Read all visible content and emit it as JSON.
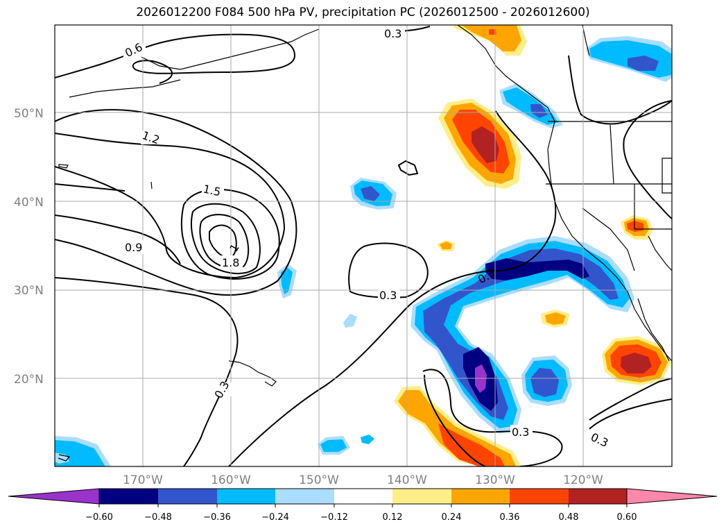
{
  "title": "2026012200 F084 500 hPa PV, precipitation PC (2026012500 - 2026012600)",
  "map": {
    "lat_labels": [
      "50°N",
      "40°N",
      "30°N",
      "20°N"
    ],
    "lon_labels": [
      "170°W",
      "160°W",
      "150°W",
      "140°W",
      "130°W",
      "120°W"
    ],
    "contour_labels": [
      "0.6",
      "1.2",
      "1.5",
      "0.9",
      "1",
      "1.8",
      "0.3",
      "0.3",
      "0.3",
      "0.3",
      "0.3",
      "0.3"
    ]
  },
  "colorbar": {
    "ticks": [
      "−0.60",
      "−0.48",
      "−0.36",
      "−0.24",
      "−0.12",
      "0.12",
      "0.24",
      "0.36",
      "0.48",
      "0.60"
    ],
    "colors": [
      "#9933cc",
      "#000080",
      "#3355cc",
      "#00bbff",
      "#aaddff",
      "#ffffff",
      "#ffee88",
      "#ffa500",
      "#ff4400",
      "#b22222",
      "#ff88aa"
    ]
  },
  "colors": {
    "neg_strong": "#9933cc",
    "neg_navy": "#000080",
    "neg_blue": "#3355cc",
    "neg_cyan": "#00bbff",
    "neg_light": "#aaddff",
    "pos_yellow": "#ffee88",
    "pos_orange": "#ffa500",
    "pos_red": "#ff4400",
    "pos_dark": "#b22222",
    "pos_pink": "#ff88aa"
  }
}
